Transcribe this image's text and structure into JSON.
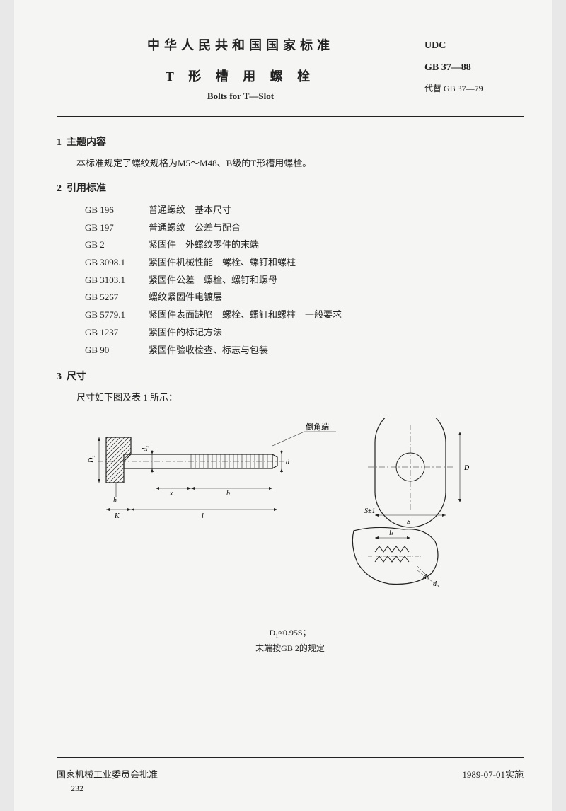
{
  "header": {
    "country_title": "中华人民共和国国家标准",
    "title_cn": "T 形 槽 用 螺 栓",
    "title_en": "Bolts for T—Slot",
    "udc_label": "UDC",
    "gb_code": "GB 37—88",
    "replaces": "代替 GB 37—79"
  },
  "section1": {
    "num": "1",
    "title": "主题内容",
    "body": "本标准规定了螺纹规格为M5～M48、B级的T形槽用螺栓。"
  },
  "section2": {
    "num": "2",
    "title": "引用标准",
    "refs": [
      {
        "code": "GB 196",
        "desc": "普通螺纹　基本尺寸"
      },
      {
        "code": "GB 197",
        "desc": "普通螺纹　公差与配合"
      },
      {
        "code": "GB 2",
        "desc": "紧固件　外螺纹零件的末端"
      },
      {
        "code": "GB 3098.1",
        "desc": "紧固件机械性能　螺栓、螺钉和螺柱"
      },
      {
        "code": "GB 3103.1",
        "desc": "紧固件公差　螺栓、螺钉和螺母"
      },
      {
        "code": "GB 5267",
        "desc": "螺纹紧固件电镀层"
      },
      {
        "code": "GB 5779.1",
        "desc": "紧固件表面缺陷　螺栓、螺钉和螺柱　一般要求"
      },
      {
        "code": "GB 1237",
        "desc": "紧固件的标记方法"
      },
      {
        "code": "GB 90",
        "desc": "紧固件验收检查、标志与包装"
      }
    ]
  },
  "section3": {
    "num": "3",
    "title": "尺寸",
    "body": "尺寸如下图及表 1 所示："
  },
  "diagram": {
    "callout": "倒角端",
    "labels": {
      "D1": "D₁",
      "d1": "d₁",
      "d": "d",
      "D": "D",
      "x": "x",
      "b": "b",
      "h": "h",
      "K": "K",
      "l": "l",
      "S": "S",
      "S_tol": "S±1",
      "lt": "lₜ",
      "d2": "d₂",
      "d3": "d₃"
    },
    "stroke": "#222",
    "hatch": "#222",
    "bg": "#f5f5f3"
  },
  "formula": {
    "line1": "D₁≈0.95S；",
    "line2": "末端按GB 2的规定"
  },
  "footer": {
    "approver": "国家机械工业委员会批准",
    "effective": "1989-07-01实施",
    "page_num": "232"
  }
}
